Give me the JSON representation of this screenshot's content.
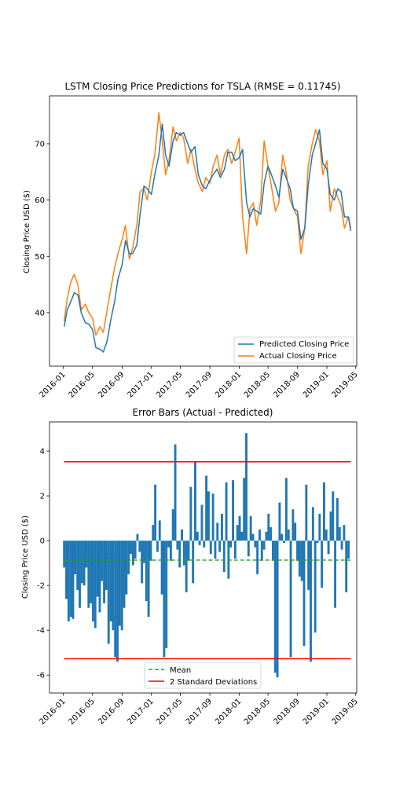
{
  "chart_data": [
    {
      "type": "line",
      "title": "LSTM Closing Price Predictions for TSLA (RMSE = 0.11745)",
      "xlabel": "",
      "ylabel": "Closing Price USD ($)",
      "xlim": [
        "2015-11-04",
        "2019-05-05"
      ],
      "ylim": [
        30.5,
        78.5
      ],
      "yticks": [
        40,
        50,
        60,
        70
      ],
      "xticks": [
        "2016-01",
        "2016-05",
        "2016-09",
        "2017-01",
        "2017-05",
        "2017-09",
        "2018-01",
        "2018-05",
        "2018-09",
        "2019-01",
        "2019-05"
      ],
      "grid": false,
      "legend": "lower right",
      "x": [
        "2016-01-04",
        "2016-01-17",
        "2016-02-01",
        "2016-02-15",
        "2016-03-01",
        "2016-03-15",
        "2016-04-01",
        "2016-04-15",
        "2016-05-01",
        "2016-05-15",
        "2016-06-01",
        "2016-06-15",
        "2016-07-01",
        "2016-07-15",
        "2016-08-01",
        "2016-08-15",
        "2016-09-01",
        "2016-09-15",
        "2016-10-01",
        "2016-10-15",
        "2016-11-01",
        "2016-11-15",
        "2016-12-01",
        "2016-12-15",
        "2017-01-01",
        "2017-01-15",
        "2017-02-01",
        "2017-02-15",
        "2017-03-01",
        "2017-03-15",
        "2017-04-01",
        "2017-04-15",
        "2017-05-01",
        "2017-05-15",
        "2017-06-01",
        "2017-06-15",
        "2017-07-01",
        "2017-07-15",
        "2017-08-01",
        "2017-08-15",
        "2017-09-01",
        "2017-09-15",
        "2017-10-01",
        "2017-10-15",
        "2017-11-01",
        "2017-11-15",
        "2017-12-01",
        "2017-12-15",
        "2018-01-01",
        "2018-01-15",
        "2018-02-01",
        "2018-02-15",
        "2018-03-01",
        "2018-03-15",
        "2018-04-01",
        "2018-04-15",
        "2018-05-01",
        "2018-05-15",
        "2018-06-01",
        "2018-06-15",
        "2018-07-01",
        "2018-07-15",
        "2018-08-01",
        "2018-08-15",
        "2018-09-01",
        "2018-09-15",
        "2018-10-01",
        "2018-10-15",
        "2018-11-01",
        "2018-11-15",
        "2018-12-01",
        "2018-12-15",
        "2019-01-01",
        "2019-01-15",
        "2019-02-01",
        "2019-02-15",
        "2019-03-01",
        "2019-03-15",
        "2019-04-01",
        "2019-04-10"
      ],
      "series": [
        {
          "name": "Predicted Closing Price",
          "color": "#1f77b4",
          "values": [
            37.5,
            40.5,
            42.0,
            43.5,
            43.2,
            40.0,
            38.2,
            38.0,
            37.0,
            33.8,
            33.5,
            33.0,
            35.0,
            38.5,
            42.0,
            46.0,
            48.5,
            52.8,
            50.5,
            50.5,
            52.0,
            57.5,
            62.5,
            62.0,
            61.0,
            64.5,
            68.0,
            73.5,
            68.0,
            66.0,
            70.5,
            72.0,
            71.5,
            72.0,
            70.0,
            68.5,
            69.5,
            64.5,
            62.5,
            62.0,
            63.5,
            64.5,
            65.5,
            64.0,
            65.5,
            68.5,
            68.5,
            67.0,
            67.5,
            69.0,
            59.5,
            57.0,
            58.5,
            58.0,
            57.5,
            63.0,
            66.0,
            64.5,
            62.5,
            60.5,
            65.5,
            64.0,
            62.0,
            58.5,
            58.0,
            53.0,
            55.0,
            62.5,
            68.0,
            70.0,
            72.5,
            66.5,
            65.5,
            61.0,
            60.0,
            62.0,
            61.5,
            57.0,
            57.0,
            54.5
          ]
        },
        {
          "name": "Actual Closing Price",
          "color": "#ff7f0e",
          "values": [
            38.5,
            42.5,
            45.5,
            46.8,
            45.0,
            40.5,
            41.5,
            40.0,
            39.0,
            36.0,
            37.5,
            36.5,
            40.5,
            44.0,
            48.0,
            50.5,
            53.0,
            55.5,
            49.5,
            51.5,
            55.5,
            61.5,
            62.0,
            60.0,
            65.0,
            68.0,
            75.5,
            70.5,
            64.5,
            67.0,
            73.0,
            70.5,
            72.0,
            71.0,
            66.5,
            69.0,
            65.5,
            63.0,
            61.5,
            64.0,
            63.0,
            66.0,
            68.0,
            64.5,
            68.0,
            69.0,
            66.5,
            68.5,
            71.0,
            57.0,
            50.5,
            58.5,
            59.5,
            55.5,
            60.0,
            70.5,
            66.0,
            62.5,
            58.0,
            59.5,
            68.0,
            65.0,
            60.0,
            58.5,
            57.0,
            50.5,
            55.0,
            66.0,
            70.0,
            72.5,
            70.5,
            64.5,
            67.0,
            58.0,
            62.0,
            60.5,
            59.0,
            55.0,
            57.0,
            55.0
          ]
        }
      ]
    },
    {
      "type": "bar",
      "title": "Error Bars (Actual - Predicted)",
      "xlabel": "",
      "ylabel": "Closing Price USD ($)",
      "xlim": [
        "2015-11-04",
        "2019-05-05"
      ],
      "ylim": [
        -6.8,
        5.3
      ],
      "yticks": [
        -6,
        -4,
        -2,
        0,
        2,
        4
      ],
      "xticks": [
        "2016-01",
        "2016-05",
        "2016-09",
        "2017-01",
        "2017-05",
        "2017-09",
        "2018-01",
        "2018-05",
        "2018-09",
        "2019-01",
        "2019-05"
      ],
      "grid": false,
      "legend": "lower center",
      "bar_color": "#1f77b4",
      "x_start": "2016-01-04",
      "x_end": "2019-04-10",
      "values": [
        -1.2,
        -2.6,
        -3.6,
        -3.4,
        -3.5,
        -1.5,
        -2.2,
        -3.0,
        -1.9,
        -2.0,
        -1.2,
        -3.0,
        -2.8,
        -3.6,
        -3.9,
        -2.5,
        -3.2,
        -1.8,
        -2.8,
        -2.2,
        -4.6,
        -3.6,
        -4.0,
        -5.2,
        -5.4,
        -3.8,
        -4.0,
        -3.0,
        -2.4,
        -1.5,
        -0.6,
        -1.1,
        -0.8,
        0.3,
        -0.5,
        -1.9,
        -1.0,
        -2.7,
        -3.4,
        -0.9,
        0.7,
        2.5,
        -0.5,
        0.9,
        -2.4,
        -5.2,
        -4.8,
        -0.3,
        -0.9,
        1.4,
        4.3,
        -0.4,
        -1.2,
        0.5,
        -1.1,
        -2.3,
        -0.9,
        2.4,
        -1.9,
        3.5,
        0.4,
        -0.2,
        1.6,
        -0.3,
        2.9,
        2.2,
        -0.6,
        2.1,
        -0.8,
        0.8,
        -0.5,
        1.2,
        -1.4,
        2.6,
        -1.7,
        -0.3,
        2.7,
        -0.8,
        0.7,
        1.1,
        0.4,
        2.8,
        4.8,
        -0.7,
        1.1,
        0.3,
        -0.3,
        -1.5,
        0.5,
        -0.9,
        -0.4,
        0.4,
        1.2,
        0.6,
        -0.9,
        -5.9,
        -6.1,
        1.7,
        0.3,
        -0.1,
        2.8,
        0.5,
        -5.2,
        1.4,
        0.8,
        -0.9,
        -1.6,
        -1.8,
        -4.7,
        2.5,
        -2.2,
        -5.4,
        1.5,
        -4.1,
        -0.1,
        1.2,
        -2.1,
        2.6,
        0.5,
        -0.6,
        1.3,
        2.2,
        -3.0,
        1.9,
        0.6,
        -0.4,
        0.7,
        -2.3,
        -0.8,
        0.0
      ],
      "reference_lines": [
        {
          "name": "Mean",
          "value": -0.87,
          "color": "#2ca02c",
          "style": "dashed"
        },
        {
          "name": "2 Standard Deviations",
          "values": [
            3.52,
            -5.27
          ],
          "color": "#ff0000",
          "style": "solid"
        }
      ]
    }
  ]
}
